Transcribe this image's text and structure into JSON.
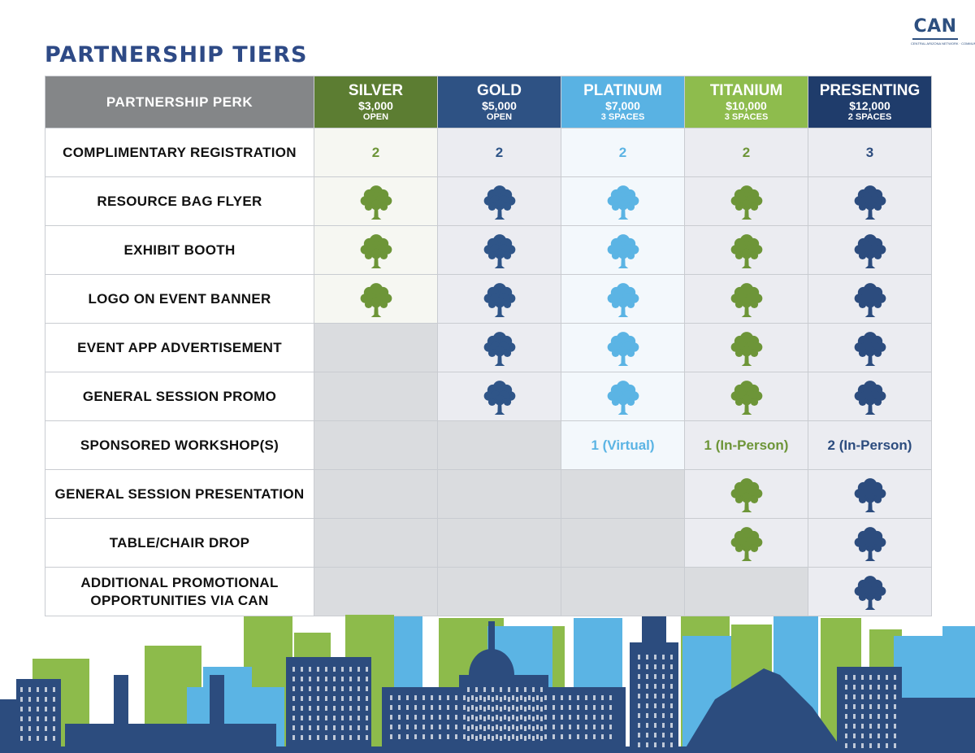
{
  "logo": {
    "text": "CAN",
    "tagline": "CENTRAL ARIZONA NETWORK · COMMUNITY ACTION NETWORK"
  },
  "title": "PARTNERSHIP TIERS",
  "perk_header": "PARTNERSHIP PERK",
  "colors": {
    "header_gray": "#848688",
    "empty_cell": "#dadcdf",
    "silver_header": "#5c7d32",
    "silver_bg": "#f6f7f2",
    "silver_icon": "#6d9538",
    "gold_header": "#2e5284",
    "gold_bg": "#ebecf1",
    "gold_icon": "#2f5588",
    "platinum_header": "#59b2e3",
    "platinum_bg": "#f3f8fc",
    "platinum_icon": "#5bb4e4",
    "titanium_header": "#8ebc4d",
    "titanium_bg": "#ebecf1",
    "titanium_icon": "#6d9538",
    "presenting_header": "#1f3c6b",
    "presenting_bg": "#ebecf1",
    "presenting_icon": "#2c4c7e"
  },
  "tiers": [
    {
      "key": "silver",
      "name": "SILVER",
      "price": "$3,000",
      "note": "OPEN"
    },
    {
      "key": "gold",
      "name": "GOLD",
      "price": "$5,000",
      "note": "OPEN"
    },
    {
      "key": "platinum",
      "name": "PLATINUM",
      "price": "$7,000",
      "note": "3 SPACES"
    },
    {
      "key": "titanium",
      "name": "TITANIUM",
      "price": "$10,000",
      "note": "3 SPACES"
    },
    {
      "key": "presenting",
      "name": "PRESENTING",
      "price": "$12,000",
      "note": "2 SPACES"
    }
  ],
  "perks": [
    {
      "name": "COMPLIMENTARY REGISTRATION",
      "values": [
        "2",
        "2",
        "2",
        "2",
        "3"
      ]
    },
    {
      "name": "RESOURCE BAG FLYER",
      "values": [
        "tree-icon",
        "tree-icon",
        "tree-icon",
        "tree-icon",
        "tree-icon"
      ]
    },
    {
      "name": "EXHIBIT BOOTH",
      "values": [
        "tree-icon",
        "tree-icon",
        "tree-icon",
        "tree-icon",
        "tree-icon"
      ]
    },
    {
      "name": "LOGO ON EVENT BANNER",
      "values": [
        "tree-icon",
        "tree-icon",
        "tree-icon",
        "tree-icon",
        "tree-icon"
      ]
    },
    {
      "name": "EVENT APP ADVERTISEMENT",
      "values": [
        null,
        "tree-icon",
        "tree-icon",
        "tree-icon",
        "tree-icon"
      ]
    },
    {
      "name": "GENERAL SESSION PROMO",
      "values": [
        null,
        "tree-icon",
        "tree-icon",
        "tree-icon",
        "tree-icon"
      ]
    },
    {
      "name": "SPONSORED WORKSHOP(S)",
      "values": [
        null,
        null,
        "1 (Virtual)",
        "1 (In-Person)",
        "2 (In-Person)"
      ]
    },
    {
      "name": "GENERAL SESSION PRESENTATION",
      "values": [
        null,
        null,
        null,
        "tree-icon",
        "tree-icon"
      ]
    },
    {
      "name": "TABLE/CHAIR DROP",
      "values": [
        null,
        null,
        null,
        "tree-icon",
        "tree-icon"
      ]
    },
    {
      "name": "ADDITIONAL PROMOTIONAL OPPORTUNITIES VIA CAN",
      "values": [
        null,
        null,
        null,
        null,
        "tree-icon"
      ]
    }
  ]
}
